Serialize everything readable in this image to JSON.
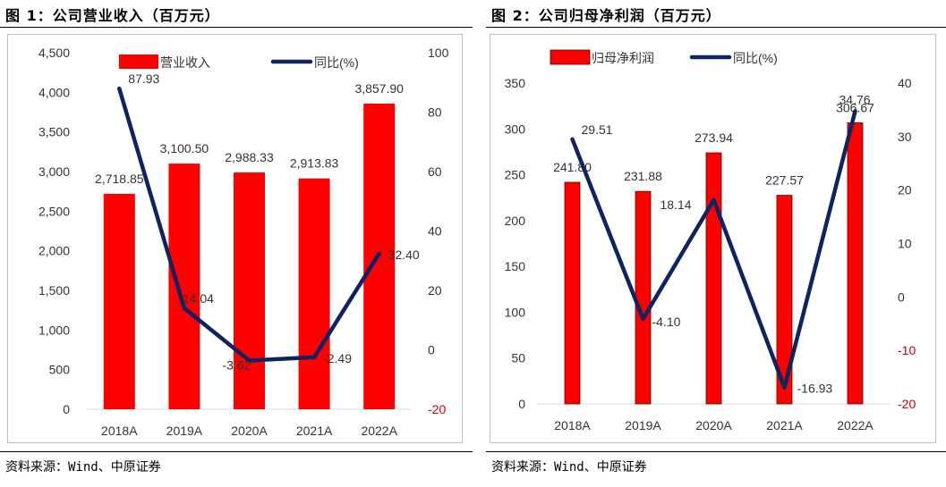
{
  "left": {
    "title": "图 1：公司营业收入（百万元）",
    "source": "资料来源：Wind、中原证券"
  },
  "right": {
    "title": "图 2：公司归母净利润（百万元）",
    "source": "资料来源：Wind、中原证券"
  },
  "colors": {
    "bar": "#ff0000",
    "line": "#0d2461",
    "negative_tick": "#cc0000",
    "axis_text": "#333333",
    "grid": "#d9d9d9"
  },
  "chart_data": [
    {
      "type": "bar",
      "categories": [
        "2018A",
        "2019A",
        "2020A",
        "2021A",
        "2022A"
      ],
      "series": [
        {
          "name": "营业收入",
          "type": "bar",
          "axis": "left",
          "values": [
            2718.85,
            3100.5,
            2988.33,
            2913.83,
            3857.9
          ],
          "labels": [
            "2,718.85",
            "3,100.50",
            "2,988.33",
            "2,913.83",
            "3,857.90"
          ]
        },
        {
          "name": "同比(%)",
          "type": "line",
          "axis": "right",
          "values": [
            87.93,
            14.04,
            -3.62,
            -2.49,
            32.4
          ],
          "labels": [
            "87.93",
            "14.04",
            "-3.62",
            "-2.49",
            "32.40"
          ]
        }
      ],
      "y_left": {
        "min": 0,
        "max": 4500,
        "ticks": [
          "0",
          "500",
          "1,000",
          "1,500",
          "2,000",
          "2,500",
          "3,000",
          "3,500",
          "4,000",
          "4,500"
        ]
      },
      "y_right": {
        "min": -20,
        "max": 100,
        "ticks": [
          "-20",
          "0",
          "20",
          "40",
          "60",
          "80",
          "100"
        ]
      },
      "grid": false,
      "legend": "top"
    },
    {
      "type": "bar",
      "categories": [
        "2018A",
        "2019A",
        "2020A",
        "2021A",
        "2022A"
      ],
      "series": [
        {
          "name": "归母净利润",
          "type": "bar",
          "axis": "left",
          "values": [
            241.8,
            231.88,
            273.94,
            227.57,
            306.67
          ],
          "labels": [
            "241.80",
            "231.88",
            "273.94",
            "227.57",
            "306.67"
          ]
        },
        {
          "name": "同比(%)",
          "type": "line",
          "axis": "right",
          "values": [
            29.51,
            -4.1,
            18.14,
            -16.93,
            34.76
          ],
          "labels": [
            "29.51",
            "-4.10",
            "18.14",
            "-16.93",
            "34.76"
          ]
        }
      ],
      "y_left": {
        "min": 0,
        "max": 350,
        "ticks": [
          "0",
          "50",
          "100",
          "150",
          "200",
          "250",
          "300",
          "350"
        ]
      },
      "y_right": {
        "min": -20,
        "max": 40,
        "ticks": [
          "-20",
          "-10",
          "0",
          "10",
          "20",
          "30",
          "40"
        ]
      },
      "grid": false,
      "legend": "top"
    }
  ]
}
